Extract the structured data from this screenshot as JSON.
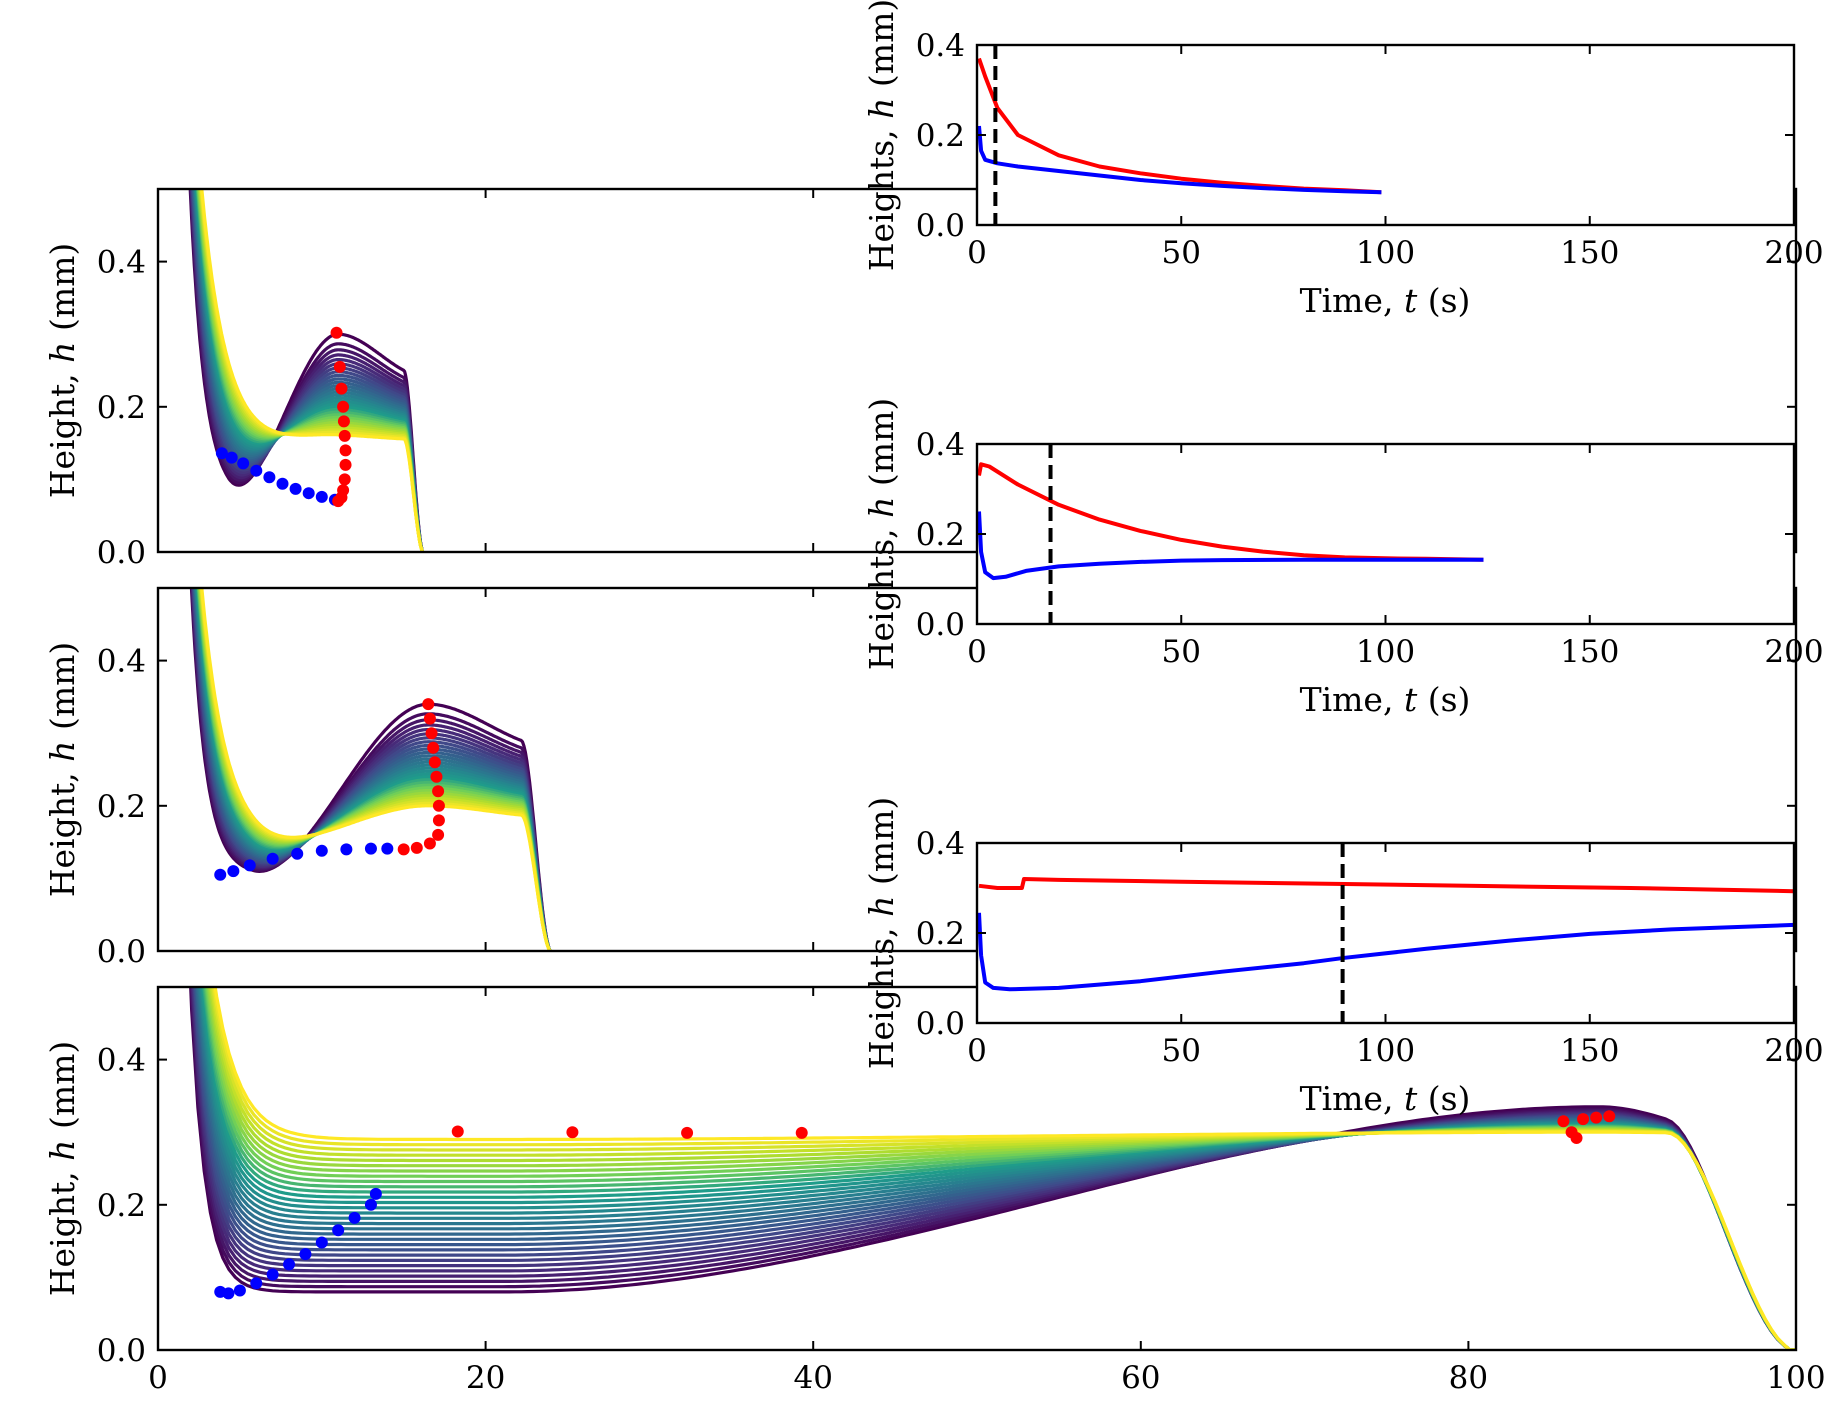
{
  "colors": {
    "viridis": [
      "#440154",
      "#482777",
      "#3f4a8a",
      "#31678e",
      "#26838f",
      "#1f9d8a",
      "#6cce5a",
      "#b6de2b",
      "#fee825"
    ],
    "red": "#ff0000",
    "blue": "#0000ff",
    "axis": "#000000",
    "dashed": "#000000"
  },
  "chart_data": [
    {
      "id": "profile-1",
      "type": "line",
      "ylabel_prefix": "Height, ",
      "ylabel_var": "h",
      "ylabel_unit": " (mm)",
      "xlim": [
        0,
        100
      ],
      "ylim": [
        0,
        0.5
      ],
      "xticks": [
        0,
        20,
        40,
        60,
        80,
        100
      ],
      "yticks": [
        0.0,
        0.2,
        0.4
      ],
      "ytick_labels": [
        "0.0",
        "0.2",
        "0.4"
      ],
      "show_xtick_labels": false,
      "profile": {
        "x_start": 1.3,
        "x_end": 16.2,
        "x_mid": 11.0,
        "flat_min": 0.07,
        "flat_max": 0.14,
        "peak_min": 0.16,
        "peak_max": 0.3,
        "n_curves": 30
      },
      "red_markers": [
        [
          10.9,
          0.302
        ],
        [
          11.1,
          0.255
        ],
        [
          11.2,
          0.225
        ],
        [
          11.3,
          0.2
        ],
        [
          11.35,
          0.18
        ],
        [
          11.4,
          0.16
        ],
        [
          11.45,
          0.14
        ],
        [
          11.45,
          0.12
        ],
        [
          11.4,
          0.1
        ],
        [
          11.3,
          0.085
        ],
        [
          11.2,
          0.075
        ],
        [
          11.0,
          0.07
        ]
      ],
      "blue_markers": [
        [
          3.9,
          0.136
        ],
        [
          4.5,
          0.13
        ],
        [
          5.2,
          0.122
        ],
        [
          6.0,
          0.112
        ],
        [
          6.8,
          0.103
        ],
        [
          7.6,
          0.094
        ],
        [
          8.4,
          0.087
        ],
        [
          9.2,
          0.081
        ],
        [
          10.0,
          0.076
        ],
        [
          10.8,
          0.072
        ]
      ]
    },
    {
      "id": "profile-2",
      "type": "line",
      "ylabel_prefix": "Height, ",
      "ylabel_var": "h",
      "ylabel_unit": " (mm)",
      "xlim": [
        0,
        100
      ],
      "ylim": [
        0,
        0.5
      ],
      "xticks": [
        0,
        20,
        40,
        60,
        80,
        100
      ],
      "yticks": [
        0.0,
        0.2,
        0.4
      ],
      "ytick_labels": [
        "0.0",
        "0.2",
        "0.4"
      ],
      "show_xtick_labels": false,
      "profile": {
        "x_start": 1.3,
        "x_end": 24.0,
        "x_mid": 16.5,
        "flat_min": 0.105,
        "flat_max": 0.14,
        "peak_min": 0.2,
        "peak_max": 0.34,
        "n_curves": 30
      },
      "red_markers": [
        [
          16.5,
          0.34
        ],
        [
          16.6,
          0.32
        ],
        [
          16.7,
          0.3
        ],
        [
          16.8,
          0.28
        ],
        [
          16.9,
          0.26
        ],
        [
          17.0,
          0.24
        ],
        [
          17.1,
          0.22
        ],
        [
          17.15,
          0.2
        ],
        [
          17.15,
          0.18
        ],
        [
          17.1,
          0.16
        ],
        [
          16.6,
          0.148
        ],
        [
          15.8,
          0.142
        ],
        [
          15.0,
          0.14
        ]
      ],
      "blue_markers": [
        [
          3.8,
          0.105
        ],
        [
          4.6,
          0.11
        ],
        [
          5.6,
          0.118
        ],
        [
          7.0,
          0.127
        ],
        [
          8.5,
          0.134
        ],
        [
          10.0,
          0.138
        ],
        [
          11.5,
          0.14
        ],
        [
          13.0,
          0.141
        ],
        [
          14.0,
          0.141
        ]
      ]
    },
    {
      "id": "profile-3",
      "type": "line",
      "ylabel_prefix": "Height, ",
      "ylabel_var": "h",
      "ylabel_unit": " (mm)",
      "xlim": [
        0,
        100
      ],
      "ylim": [
        0,
        0.5
      ],
      "xticks": [
        0,
        20,
        40,
        60,
        80,
        100
      ],
      "xtick_labels": [
        "0",
        "20",
        "40",
        "60",
        "80",
        "100"
      ],
      "yticks": [
        0.0,
        0.2,
        0.4
      ],
      "ytick_labels": [
        "0.0",
        "0.2",
        "0.4"
      ],
      "show_xtick_labels": true,
      "profile": {
        "x_start": 1.3,
        "x_end": 100.0,
        "x_mid": 88.0,
        "flat_min": 0.08,
        "flat_max": 0.29,
        "peak_min": 0.3,
        "peak_max": 0.335,
        "n_curves": 30
      },
      "red_markers": [
        [
          18.3,
          0.301
        ],
        [
          25.3,
          0.3
        ],
        [
          32.3,
          0.299
        ],
        [
          39.3,
          0.299
        ],
        [
          85.8,
          0.315
        ],
        [
          86.3,
          0.3
        ],
        [
          86.6,
          0.292
        ],
        [
          87.0,
          0.318
        ],
        [
          87.8,
          0.32
        ],
        [
          88.6,
          0.322
        ]
      ],
      "blue_markers": [
        [
          3.8,
          0.08
        ],
        [
          4.3,
          0.078
        ],
        [
          5.0,
          0.082
        ],
        [
          6.0,
          0.092
        ],
        [
          7.0,
          0.104
        ],
        [
          8.0,
          0.118
        ],
        [
          9.0,
          0.132
        ],
        [
          10.0,
          0.148
        ],
        [
          11.0,
          0.165
        ],
        [
          12.0,
          0.182
        ],
        [
          13.0,
          0.2
        ],
        [
          13.3,
          0.215
        ]
      ]
    },
    {
      "id": "time-1",
      "type": "line",
      "ylabel_prefix": "Heights, ",
      "ylabel_var": "h",
      "ylabel_unit": " (mm)",
      "xlabel_prefix": "Time, ",
      "xlabel_var": "t",
      "xlabel_unit": " (s)",
      "xlim": [
        0,
        200
      ],
      "ylim": [
        0,
        0.4
      ],
      "xticks": [
        0,
        50,
        100,
        150,
        200
      ],
      "xtick_labels": [
        "0",
        "50",
        "100",
        "150",
        "200"
      ],
      "yticks": [
        0.0,
        0.2,
        0.4
      ],
      "ytick_labels": [
        "0.0",
        "0.2",
        "0.4"
      ],
      "vline_x": 4.5,
      "series": [
        {
          "color": "red",
          "points": [
            [
              0.5,
              0.37
            ],
            [
              2,
              0.33
            ],
            [
              5,
              0.26
            ],
            [
              10,
              0.2
            ],
            [
              20,
              0.155
            ],
            [
              30,
              0.13
            ],
            [
              40,
              0.115
            ],
            [
              50,
              0.103
            ],
            [
              60,
              0.094
            ],
            [
              70,
              0.087
            ],
            [
              80,
              0.081
            ],
            [
              90,
              0.077
            ],
            [
              99,
              0.073
            ]
          ]
        },
        {
          "color": "blue",
          "points": [
            [
              0.5,
              0.22
            ],
            [
              1,
              0.165
            ],
            [
              2,
              0.145
            ],
            [
              5,
              0.137
            ],
            [
              10,
              0.13
            ],
            [
              20,
              0.12
            ],
            [
              30,
              0.11
            ],
            [
              40,
              0.1
            ],
            [
              50,
              0.093
            ],
            [
              60,
              0.087
            ],
            [
              70,
              0.082
            ],
            [
              80,
              0.078
            ],
            [
              90,
              0.075
            ],
            [
              99,
              0.073
            ]
          ]
        }
      ]
    },
    {
      "id": "time-2",
      "type": "line",
      "ylabel_prefix": "Heights, ",
      "ylabel_var": "h",
      "ylabel_unit": " (mm)",
      "xlabel_prefix": "Time, ",
      "xlabel_var": "t",
      "xlabel_unit": " (s)",
      "xlim": [
        0,
        200
      ],
      "ylim": [
        0,
        0.4
      ],
      "xticks": [
        0,
        50,
        100,
        150,
        200
      ],
      "xtick_labels": [
        "0",
        "50",
        "100",
        "150",
        "200"
      ],
      "yticks": [
        0.0,
        0.2,
        0.4
      ],
      "ytick_labels": [
        "0.0",
        "0.2",
        "0.4"
      ],
      "vline_x": 18,
      "series": [
        {
          "color": "red",
          "points": [
            [
              0.5,
              0.33
            ],
            [
              1,
              0.355
            ],
            [
              3,
              0.35
            ],
            [
              10,
              0.31
            ],
            [
              20,
              0.265
            ],
            [
              30,
              0.232
            ],
            [
              40,
              0.207
            ],
            [
              50,
              0.187
            ],
            [
              60,
              0.172
            ],
            [
              70,
              0.161
            ],
            [
              80,
              0.153
            ],
            [
              90,
              0.148
            ],
            [
              100,
              0.146
            ],
            [
              110,
              0.145
            ],
            [
              124,
              0.143
            ]
          ]
        },
        {
          "color": "blue",
          "points": [
            [
              0.5,
              0.25
            ],
            [
              1,
              0.16
            ],
            [
              2,
              0.115
            ],
            [
              4,
              0.102
            ],
            [
              7,
              0.105
            ],
            [
              12,
              0.118
            ],
            [
              20,
              0.128
            ],
            [
              30,
              0.134
            ],
            [
              40,
              0.138
            ],
            [
              50,
              0.141
            ],
            [
              60,
              0.142
            ],
            [
              80,
              0.143
            ],
            [
              100,
              0.143
            ],
            [
              124,
              0.143
            ]
          ]
        }
      ]
    },
    {
      "id": "time-3",
      "type": "line",
      "ylabel_prefix": "Heights, ",
      "ylabel_var": "h",
      "ylabel_unit": " (mm)",
      "xlabel_prefix": "Time, ",
      "xlabel_var": "t",
      "xlabel_unit": " (s)",
      "xlim": [
        0,
        200
      ],
      "ylim": [
        0,
        0.4
      ],
      "xticks": [
        0,
        50,
        100,
        150,
        200
      ],
      "xtick_labels": [
        "0",
        "50",
        "100",
        "150",
        "200"
      ],
      "yticks": [
        0.0,
        0.2,
        0.4
      ],
      "ytick_labels": [
        "0.0",
        "0.2",
        "0.4"
      ],
      "vline_x": 89.5,
      "series": [
        {
          "color": "red",
          "points": [
            [
              0.5,
              0.305
            ],
            [
              5,
              0.3
            ],
            [
              11,
              0.3
            ],
            [
              11.5,
              0.32
            ],
            [
              20,
              0.318
            ],
            [
              50,
              0.314
            ],
            [
              90,
              0.309
            ],
            [
              120,
              0.305
            ],
            [
              160,
              0.3
            ],
            [
              200,
              0.293
            ]
          ]
        },
        {
          "color": "blue",
          "points": [
            [
              0.5,
              0.245
            ],
            [
              1,
              0.15
            ],
            [
              2,
              0.09
            ],
            [
              4,
              0.078
            ],
            [
              8,
              0.075
            ],
            [
              20,
              0.078
            ],
            [
              40,
              0.093
            ],
            [
              60,
              0.114
            ],
            [
              80,
              0.133
            ],
            [
              90,
              0.145
            ],
            [
              110,
              0.165
            ],
            [
              130,
              0.183
            ],
            [
              150,
              0.198
            ],
            [
              170,
              0.208
            ],
            [
              200,
              0.218
            ]
          ]
        }
      ]
    }
  ]
}
